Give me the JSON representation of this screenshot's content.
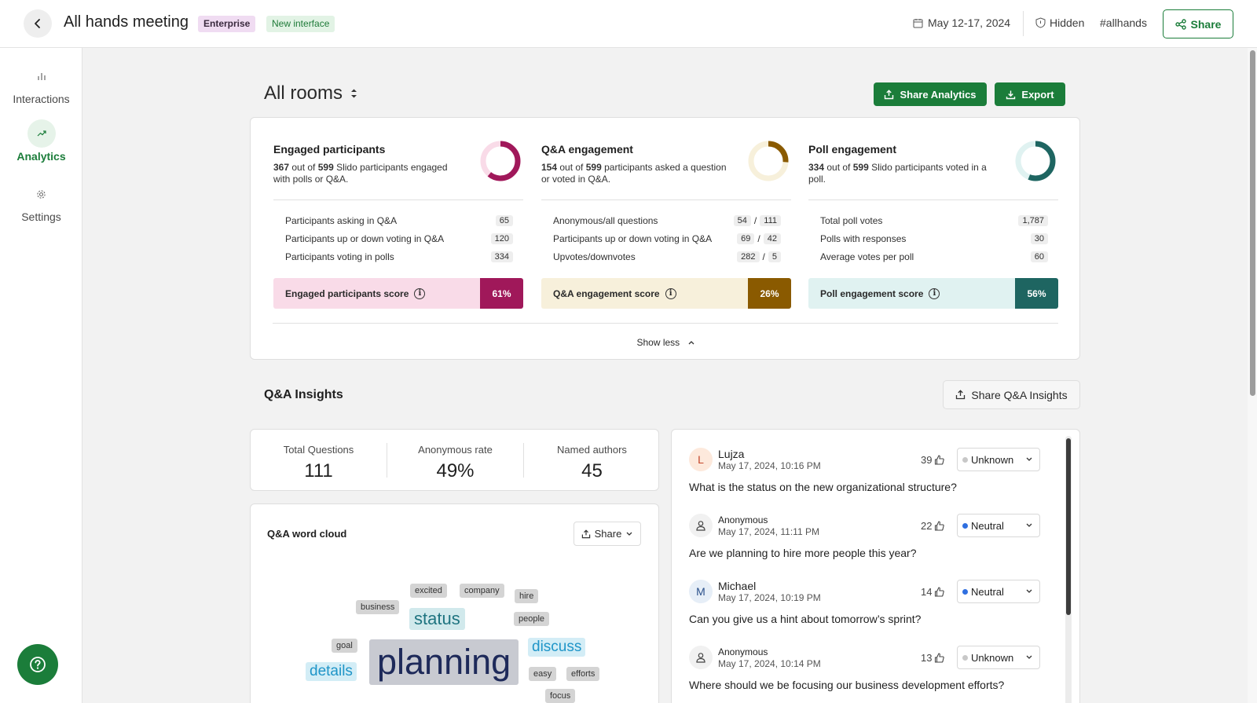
{
  "header": {
    "title": "All hands meeting",
    "badges": [
      "Enterprise",
      "New interface"
    ],
    "date": "May 12-17, 2024",
    "visibility": "Hidden",
    "hashtag": "#allhands",
    "share_label": "Share"
  },
  "sidebar": {
    "items": [
      {
        "label": "Interactions",
        "icon": "bar-chart-icon"
      },
      {
        "label": "Analytics",
        "icon": "trend-up-icon"
      },
      {
        "label": "Settings",
        "icon": "gear-icon"
      }
    ],
    "active": "Analytics"
  },
  "toolbar": {
    "rooms_label": "All rooms",
    "share_analytics_label": "Share Analytics",
    "export_label": "Export"
  },
  "stats": [
    {
      "title": "Engaged participants",
      "num": "367",
      "mid": " out of ",
      "total": "599",
      "desc_tail": " Slido participants engaged with polls or Q&A.",
      "rows": [
        {
          "label": "Participants asking in Q&A",
          "values": [
            "65"
          ]
        },
        {
          "label": "Participants up or down voting in Q&A",
          "values": [
            "120"
          ]
        },
        {
          "label": "Participants voting in polls",
          "values": [
            "334"
          ]
        }
      ],
      "score_label": "Engaged participants score",
      "score": "61%",
      "score_fraction": 0.61,
      "color": "#a0185a",
      "light": "#f9dbe8"
    },
    {
      "title": "Q&A engagement",
      "num": "154",
      "mid": " out of ",
      "total": "599",
      "desc_tail": " participants asked a question or voted in Q&A.",
      "rows": [
        {
          "label": "Anonymous/all questions",
          "values": [
            "54",
            "111"
          ]
        },
        {
          "label": "Participants up or down voting in Q&A",
          "values": [
            "69",
            "42"
          ]
        },
        {
          "label": "Upvotes/downvotes",
          "values": [
            "282",
            "5"
          ]
        }
      ],
      "score_label": "Q&A engagement score",
      "score": "26%",
      "score_fraction": 0.26,
      "color": "#8a5a00",
      "light": "#f7f0db"
    },
    {
      "title": "Poll engagement",
      "num": "334",
      "mid": " out of ",
      "total": "599",
      "desc_tail": " Slido participants voted in a poll.",
      "rows": [
        {
          "label": "Total poll votes",
          "values": [
            "1,787"
          ]
        },
        {
          "label": "Polls with responses",
          "values": [
            "30"
          ]
        },
        {
          "label": "Average votes per poll",
          "values": [
            "60"
          ]
        }
      ],
      "score_label": "Poll engagement score",
      "score": "56%",
      "score_fraction": 0.56,
      "color": "#1e6561",
      "light": "#e0f2f1"
    }
  ],
  "show_less_label": "Show less",
  "qa_insights": {
    "title": "Q&A Insights",
    "share_label": "Share Q&A Insights",
    "totals": [
      {
        "label": "Total Questions",
        "value": "111"
      },
      {
        "label": "Anonymous rate",
        "value": "49%"
      },
      {
        "label": "Named authors",
        "value": "45"
      }
    ]
  },
  "word_cloud": {
    "title": "Q&A word cloud",
    "share_label": "Share",
    "words": [
      "excited",
      "company",
      "hire",
      "business",
      "status",
      "people",
      "goal",
      "discuss",
      "planning",
      "details",
      "easy",
      "efforts",
      "focus"
    ]
  },
  "questions": [
    {
      "author": "Lujza",
      "initial": "L",
      "time": "May 17, 2024, 10:16 PM",
      "votes": "39",
      "sentiment": "Unknown",
      "text": "What is the status on the new organizational structure?"
    },
    {
      "author": "Anonymous",
      "initial": "",
      "time": "May 17, 2024, 11:11 PM",
      "votes": "22",
      "sentiment": "Neutral",
      "text": "Are we planning to hire more people this year?"
    },
    {
      "author": "Michael",
      "initial": "M",
      "time": "May 17, 2024, 10:19 PM",
      "votes": "14",
      "sentiment": "Neutral",
      "text": "Can you give us a hint about tomorrow’s sprint?"
    },
    {
      "author": "Anonymous",
      "initial": "",
      "time": "May 17, 2024, 10:14 PM",
      "votes": "13",
      "sentiment": "Unknown",
      "text": "Where should we be focusing our business development efforts?"
    }
  ],
  "colors": {
    "brand": "#1b7d3a",
    "neutral_dot": "#2f6fe0",
    "unknown_dot": "#c8c8c8"
  }
}
